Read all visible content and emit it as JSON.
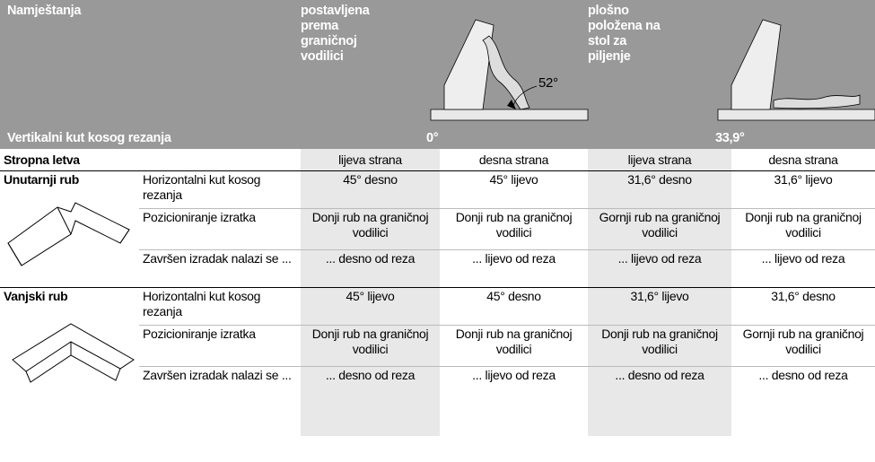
{
  "header": {
    "title": "Namještanja",
    "mode_1": "postavljena prema graničnoj vodilici",
    "mode_2": "plošno položena na stol za piljenje",
    "angle_note": "52°",
    "vertical_label": "Vertikalni kut kosog rezanja",
    "vertical_1": "0°",
    "vertical_2": "33,9°"
  },
  "table": {
    "header_row": [
      "Stropna letva",
      "lijeva strana",
      "desna strana",
      "lijeva strana",
      "desna strana"
    ],
    "groups": [
      {
        "label": "Unutarnji rub",
        "rows": [
          [
            "Horizontalni kut kosog rezanja",
            "45° desno",
            "45° lijevo",
            "31,6° desno",
            "31,6° lijevo"
          ],
          [
            "Pozicioniranje izratka",
            "Donji rub na graničnoj vodilici",
            "Donji rub na graničnoj vodilici",
            "Gornji rub na graničnoj vodilici",
            "Donji rub na graničnoj vodilici"
          ],
          [
            "Završen izradak nalazi se ...",
            "... desno od reza",
            "... lijevo od reza",
            "... lijevo od reza",
            "... lijevo od reza"
          ]
        ]
      },
      {
        "label": "Vanjski rub",
        "rows": [
          [
            "Horizontalni kut kosog rezanja",
            "45° lijevo",
            "45° desno",
            "31,6° lijevo",
            "31,6° desno"
          ],
          [
            "Pozicioniranje izratka",
            "Donji rub na graničnoj vodilici",
            "Donji rub na graničnoj vodilici",
            "Donji rub na graničnoj vodilici",
            "Gornji rub na graničnoj vodilici"
          ],
          [
            "Završen izradak nalazi se ...",
            "... desno od reza",
            "... lijevo od reza",
            "... desno od reza",
            "... desno od reza"
          ]
        ]
      }
    ]
  }
}
